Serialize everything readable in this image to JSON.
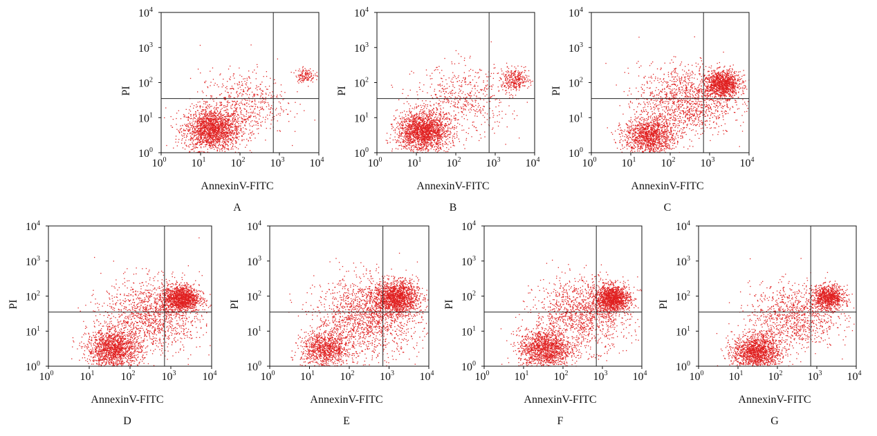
{
  "figure": {
    "panel_labels": [
      "A",
      "B",
      "C",
      "D",
      "E",
      "F",
      "G"
    ],
    "xlabel": "AnnexinV-FITC",
    "ylabel": "PI",
    "tick_base": "10",
    "tick_exponents": [
      "0",
      "1",
      "2",
      "3",
      "4"
    ],
    "point_color": "#e02020",
    "quadrant_line_color": "#222222"
  },
  "chart_data": [
    {
      "type": "scatter",
      "panel": "A",
      "xlabel": "AnnexinV-FITC",
      "ylabel": "PI",
      "x_scale": "log",
      "y_scale": "log",
      "xlim": [
        1,
        10000
      ],
      "ylim": [
        1,
        10000
      ],
      "quadrant_gate": {
        "x": 700,
        "y": 35
      },
      "populations": [
        {
          "cx": 20,
          "cy": 4.5,
          "spread": 0.35,
          "n": 1900
        },
        {
          "cx": 120,
          "cy": 25,
          "spread": 0.55,
          "n": 550
        },
        {
          "cx": 4500,
          "cy": 160,
          "spread": 0.12,
          "n": 140
        }
      ]
    },
    {
      "type": "scatter",
      "panel": "B",
      "xlabel": "AnnexinV-FITC",
      "ylabel": "PI",
      "x_scale": "log",
      "y_scale": "log",
      "xlim": [
        1,
        10000
      ],
      "ylim": [
        1,
        10000
      ],
      "quadrant_gate": {
        "x": 700,
        "y": 35
      },
      "populations": [
        {
          "cx": 15,
          "cy": 4,
          "spread": 0.33,
          "n": 1900
        },
        {
          "cx": 150,
          "cy": 30,
          "spread": 0.6,
          "n": 550
        },
        {
          "cx": 3200,
          "cy": 120,
          "spread": 0.18,
          "n": 320
        }
      ]
    },
    {
      "type": "scatter",
      "panel": "C",
      "xlabel": "AnnexinV-FITC",
      "ylabel": "PI",
      "x_scale": "log",
      "y_scale": "log",
      "xlim": [
        1,
        10000
      ],
      "ylim": [
        1,
        10000
      ],
      "quadrant_gate": {
        "x": 700,
        "y": 35
      },
      "populations": [
        {
          "cx": 30,
          "cy": 3,
          "spread": 0.32,
          "n": 1300
        },
        {
          "cx": 250,
          "cy": 30,
          "spread": 0.6,
          "n": 1300
        },
        {
          "cx": 2200,
          "cy": 90,
          "spread": 0.22,
          "n": 1100
        }
      ]
    },
    {
      "type": "scatter",
      "panel": "D",
      "xlabel": "AnnexinV-FITC",
      "ylabel": "PI",
      "x_scale": "log",
      "y_scale": "log",
      "xlim": [
        1,
        10000
      ],
      "ylim": [
        1,
        10000
      ],
      "quadrant_gate": {
        "x": 700,
        "y": 35
      },
      "populations": [
        {
          "cx": 40,
          "cy": 3,
          "spread": 0.33,
          "n": 1500
        },
        {
          "cx": 350,
          "cy": 30,
          "spread": 0.6,
          "n": 1300
        },
        {
          "cx": 1800,
          "cy": 85,
          "spread": 0.22,
          "n": 1300
        }
      ]
    },
    {
      "type": "scatter",
      "panel": "E",
      "xlabel": "AnnexinV-FITC",
      "ylabel": "PI",
      "x_scale": "log",
      "y_scale": "log",
      "xlim": [
        1,
        10000
      ],
      "ylim": [
        1,
        10000
      ],
      "quadrant_gate": {
        "x": 700,
        "y": 35
      },
      "populations": [
        {
          "cx": 25,
          "cy": 3,
          "spread": 0.3,
          "n": 1000
        },
        {
          "cx": 300,
          "cy": 25,
          "spread": 0.65,
          "n": 1600
        },
        {
          "cx": 1500,
          "cy": 90,
          "spread": 0.28,
          "n": 1500
        }
      ]
    },
    {
      "type": "scatter",
      "panel": "F",
      "xlabel": "AnnexinV-FITC",
      "ylabel": "PI",
      "x_scale": "log",
      "y_scale": "log",
      "xlim": [
        1,
        10000
      ],
      "ylim": [
        1,
        10000
      ],
      "quadrant_gate": {
        "x": 700,
        "y": 35
      },
      "populations": [
        {
          "cx": 35,
          "cy": 3,
          "spread": 0.33,
          "n": 1400
        },
        {
          "cx": 300,
          "cy": 30,
          "spread": 0.6,
          "n": 1300
        },
        {
          "cx": 1800,
          "cy": 85,
          "spread": 0.22,
          "n": 1300
        }
      ]
    },
    {
      "type": "scatter",
      "panel": "G",
      "xlabel": "AnnexinV-FITC",
      "ylabel": "PI",
      "x_scale": "log",
      "y_scale": "log",
      "xlim": [
        1,
        10000
      ],
      "ylim": [
        1,
        10000
      ],
      "quadrant_gate": {
        "x": 700,
        "y": 35
      },
      "populations": [
        {
          "cx": 30,
          "cy": 2.5,
          "spread": 0.3,
          "n": 1500
        },
        {
          "cx": 250,
          "cy": 25,
          "spread": 0.55,
          "n": 1000
        },
        {
          "cx": 2000,
          "cy": 90,
          "spread": 0.2,
          "n": 900
        }
      ]
    }
  ]
}
